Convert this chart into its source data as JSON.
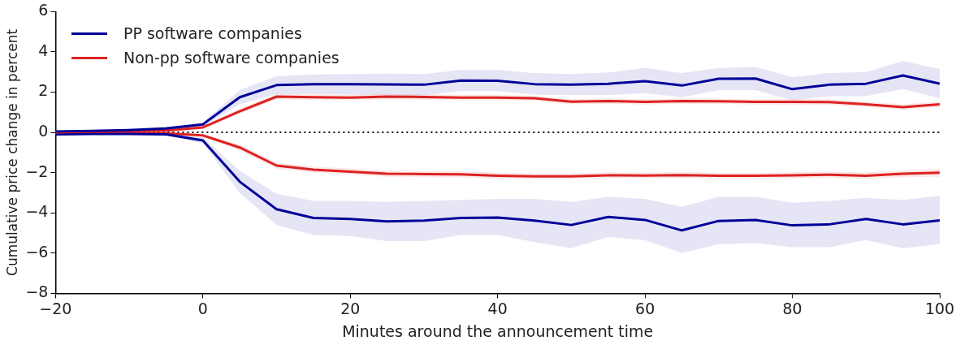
{
  "chart_data": {
    "type": "line",
    "xlabel": "Minutes around the announcement time",
    "ylabel": "Cumulative price change in percent",
    "x": [
      -20,
      -15,
      -10,
      -5,
      0,
      5,
      10,
      15,
      20,
      25,
      30,
      35,
      40,
      45,
      50,
      55,
      60,
      65,
      70,
      75,
      80,
      85,
      90,
      95,
      100
    ],
    "xlim": [
      -20,
      100
    ],
    "xticks": [
      -20,
      0,
      20,
      40,
      60,
      80,
      100
    ],
    "ylim": [
      -8,
      6
    ],
    "yticks": [
      -8,
      -6,
      -4,
      -2,
      0,
      2,
      4,
      6
    ],
    "grid": false,
    "legend": "top left",
    "marker": "none",
    "line_style": "solid",
    "ref_lines": [
      {
        "axis": "y",
        "value": 0,
        "color": "#000000",
        "line_style": "dotted"
      }
    ],
    "series": [
      {
        "name": "PP software companies",
        "color": "#000099",
        "values": [
          0.05,
          0.08,
          0.12,
          0.2,
          0.4,
          1.75,
          2.35,
          2.4,
          2.4,
          2.38,
          2.37,
          2.58,
          2.57,
          2.4,
          2.37,
          2.42,
          2.55,
          2.33,
          2.67,
          2.68,
          2.15,
          2.37,
          2.42,
          2.83,
          2.42
        ],
        "lower": [
          0.0,
          0.03,
          0.06,
          0.12,
          0.3,
          1.4,
          1.9,
          1.9,
          1.88,
          1.85,
          1.85,
          2.05,
          2.05,
          1.88,
          1.85,
          1.85,
          1.95,
          1.75,
          2.1,
          2.1,
          1.6,
          1.8,
          1.8,
          2.15,
          1.7
        ],
        "upper": [
          0.1,
          0.13,
          0.18,
          0.28,
          0.5,
          2.1,
          2.8,
          2.88,
          2.9,
          2.92,
          2.9,
          3.1,
          3.1,
          2.95,
          2.9,
          2.98,
          3.2,
          2.95,
          3.2,
          3.25,
          2.75,
          2.95,
          3.0,
          3.55,
          3.15
        ]
      },
      {
        "name": "Non-pp software companies",
        "color": "#dd2222",
        "values": [
          0.0,
          0.03,
          0.07,
          0.1,
          0.25,
          1.05,
          1.78,
          1.75,
          1.73,
          1.78,
          1.76,
          1.73,
          1.73,
          1.7,
          1.53,
          1.56,
          1.52,
          1.56,
          1.55,
          1.52,
          1.52,
          1.51,
          1.4,
          1.26,
          1.4
        ],
        "lower": [
          -0.03,
          0.0,
          0.04,
          0.06,
          0.18,
          0.92,
          1.65,
          1.62,
          1.6,
          1.65,
          1.63,
          1.6,
          1.6,
          1.57,
          1.4,
          1.43,
          1.39,
          1.43,
          1.42,
          1.39,
          1.38,
          1.37,
          1.26,
          1.12,
          1.26
        ],
        "upper": [
          0.03,
          0.06,
          0.1,
          0.14,
          0.32,
          1.18,
          1.91,
          1.88,
          1.86,
          1.91,
          1.89,
          1.86,
          1.86,
          1.83,
          1.66,
          1.69,
          1.65,
          1.69,
          1.68,
          1.65,
          1.66,
          1.65,
          1.54,
          1.4,
          1.54
        ]
      },
      {
        "color": "#000099",
        "values": [
          -0.1,
          -0.08,
          -0.08,
          -0.1,
          -0.4,
          -2.45,
          -3.82,
          -4.25,
          -4.3,
          -4.42,
          -4.38,
          -4.25,
          -4.23,
          -4.38,
          -4.6,
          -4.2,
          -4.35,
          -4.87,
          -4.4,
          -4.35,
          -4.62,
          -4.57,
          -4.3,
          -4.57,
          -4.37
        ],
        "lower": [
          -0.15,
          -0.13,
          -0.13,
          -0.17,
          -0.55,
          -3.0,
          -4.6,
          -5.1,
          -5.15,
          -5.4,
          -5.4,
          -5.1,
          -5.1,
          -5.45,
          -5.75,
          -5.2,
          -5.35,
          -6.0,
          -5.55,
          -5.5,
          -5.7,
          -5.7,
          -5.35,
          -5.75,
          -5.55
        ],
        "upper": [
          -0.05,
          -0.03,
          -0.03,
          -0.03,
          -0.25,
          -1.9,
          -3.05,
          -3.4,
          -3.4,
          -3.45,
          -3.4,
          -3.35,
          -3.3,
          -3.3,
          -3.45,
          -3.2,
          -3.3,
          -3.7,
          -3.2,
          -3.2,
          -3.5,
          -3.4,
          -3.25,
          -3.35,
          -3.15
        ]
      },
      {
        "color": "#dd2222",
        "values": [
          -0.05,
          -0.05,
          -0.05,
          -0.05,
          -0.15,
          -0.75,
          -1.65,
          -1.85,
          -1.95,
          -2.05,
          -2.07,
          -2.08,
          -2.15,
          -2.18,
          -2.18,
          -2.13,
          -2.14,
          -2.12,
          -2.15,
          -2.15,
          -2.13,
          -2.1,
          -2.15,
          -2.05,
          -2.0
        ],
        "lower": [
          -0.08,
          -0.08,
          -0.08,
          -0.08,
          -0.22,
          -0.9,
          -1.8,
          -2.0,
          -2.1,
          -2.2,
          -2.22,
          -2.23,
          -2.3,
          -2.33,
          -2.33,
          -2.28,
          -2.29,
          -2.27,
          -2.3,
          -2.3,
          -2.28,
          -2.25,
          -2.32,
          -2.22,
          -2.2
        ],
        "upper": [
          -0.02,
          -0.02,
          -0.02,
          -0.02,
          -0.08,
          -0.6,
          -1.5,
          -1.7,
          -1.8,
          -1.9,
          -1.92,
          -1.93,
          -2.0,
          -2.03,
          -2.03,
          -1.98,
          -1.99,
          -1.97,
          -2.0,
          -2.0,
          -1.98,
          -1.95,
          -1.98,
          -1.88,
          -1.8
        ]
      }
    ]
  }
}
